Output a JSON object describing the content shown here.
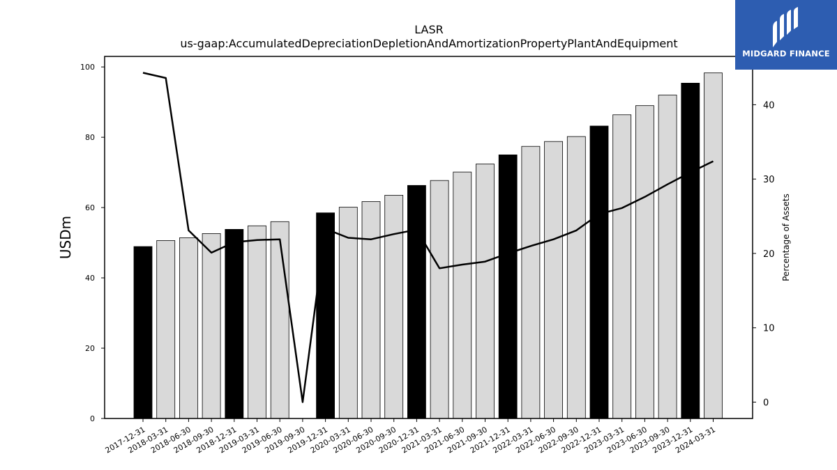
{
  "logo": {
    "text": "MIDGARD FINANCE"
  },
  "colors": {
    "highlight_bar": "#000000",
    "regular_bar": "#d9d9d9",
    "line": "#000000",
    "logo_bg": "#2d5db1"
  },
  "chart_data": {
    "type": "bar",
    "title": "LASR",
    "subtitle": "us-gaap:AccumulatedDepreciationDepletionAndAmortizationPropertyPlantAndEquipment",
    "ylabel": "USDm",
    "y2label": "Percentage of Assets",
    "ylim": [
      0,
      103
    ],
    "y2lim": [
      -2.2,
      46.5
    ],
    "yticks": [
      0,
      20,
      40,
      60,
      80,
      100
    ],
    "y2ticks": [
      0,
      10,
      20,
      30,
      40
    ],
    "categories": [
      "2017-12-31",
      "2018-03-31",
      "2018-06-30",
      "2018-09-30",
      "2018-12-31",
      "2019-03-31",
      "2019-06-30",
      "2019-09-30",
      "2019-12-31",
      "2020-03-31",
      "2020-06-30",
      "2020-09-30",
      "2020-12-31",
      "2021-03-31",
      "2021-06-30",
      "2021-09-30",
      "2021-12-31",
      "2022-03-31",
      "2022-06-30",
      "2022-09-30",
      "2022-12-31",
      "2023-03-31",
      "2023-06-30",
      "2023-09-30",
      "2023-12-31",
      "2024-03-31"
    ],
    "series": [
      {
        "type": "bar",
        "axis": "left",
        "values": [
          48.9,
          50.6,
          51.4,
          52.6,
          53.8,
          54.8,
          56.0,
          null,
          58.5,
          60.1,
          61.7,
          63.5,
          66.3,
          67.7,
          70.1,
          72.4,
          75.0,
          77.4,
          78.8,
          80.2,
          83.2,
          86.4,
          89.0,
          92.0,
          95.4,
          98.3
        ],
        "highlighted": [
          true,
          false,
          false,
          false,
          true,
          false,
          false,
          false,
          true,
          false,
          false,
          false,
          true,
          false,
          false,
          false,
          true,
          false,
          false,
          false,
          true,
          false,
          false,
          false,
          true,
          false
        ]
      },
      {
        "type": "line",
        "axis": "right",
        "values": [
          44.3,
          43.6,
          23.1,
          20.1,
          21.5,
          21.8,
          21.9,
          0.0,
          23.3,
          22.1,
          21.9,
          22.6,
          23.2,
          18.0,
          18.5,
          18.9,
          20.0,
          21.0,
          21.9,
          23.1,
          25.3,
          26.1,
          27.6,
          29.3,
          30.9,
          32.4
        ]
      }
    ],
    "grid": false,
    "legend": "none"
  }
}
